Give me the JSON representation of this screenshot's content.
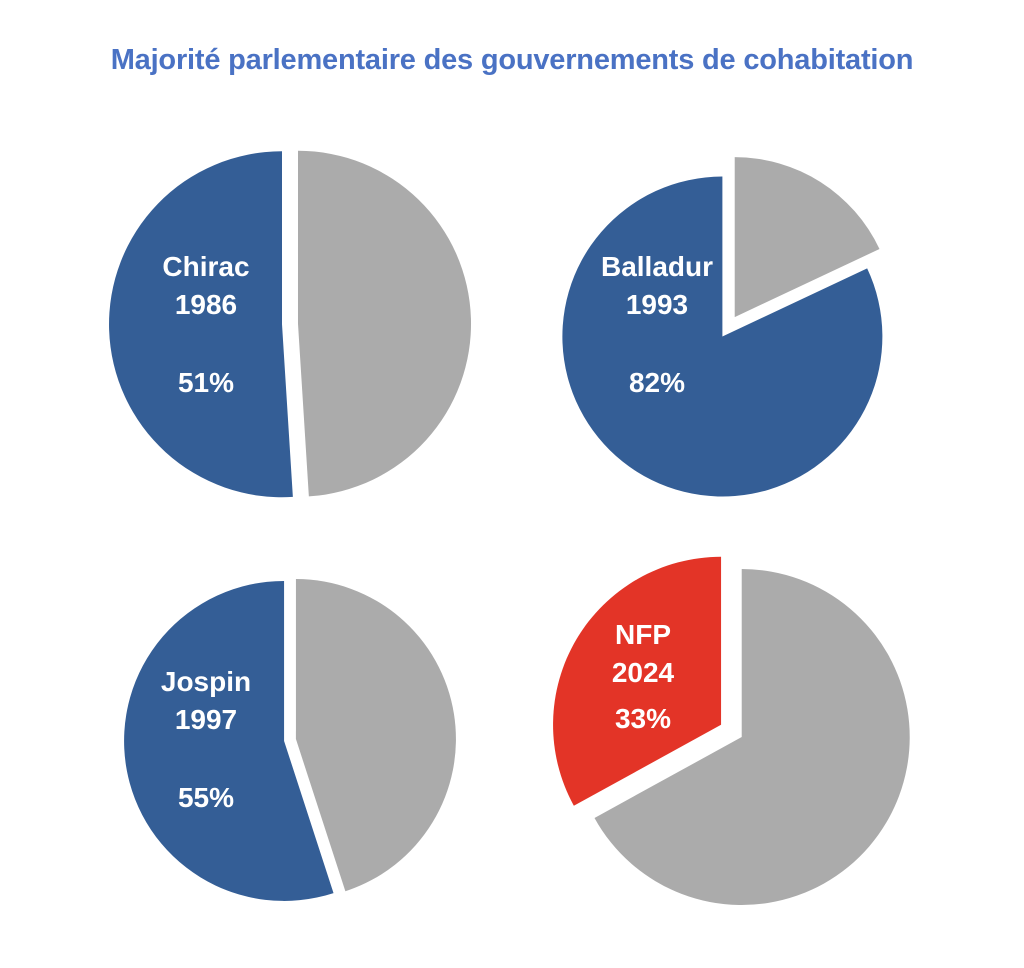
{
  "chart_data": {
    "title": "Majorité parlementaire des gouvernements de cohabitation",
    "type": "pie",
    "colors": {
      "majority_blue": "#345e96",
      "majority_red": "#e33427",
      "rest_gray": "#ababab",
      "label_text": "#ffffff",
      "title": "#4a72c4"
    },
    "pies": [
      {
        "name": "Chirac",
        "year": "1986",
        "percent_label": "51%",
        "majority_share": 51,
        "majority_color": "majority_blue"
      },
      {
        "name": "Balladur",
        "year": "1993",
        "percent_label": "82%",
        "majority_share": 82,
        "majority_color": "majority_blue"
      },
      {
        "name": "Jospin",
        "year": "1997",
        "percent_label": "55%",
        "majority_share": 55,
        "majority_color": "majority_blue"
      },
      {
        "name": "NFP",
        "year": "2024",
        "percent_label": "33%",
        "majority_share": 33,
        "majority_color": "majority_red"
      }
    ]
  }
}
